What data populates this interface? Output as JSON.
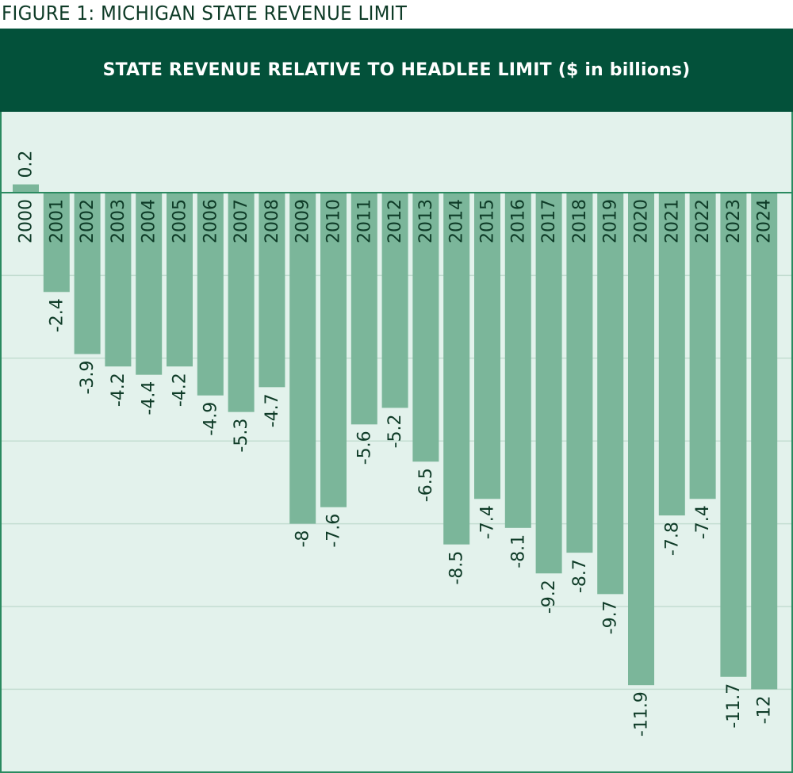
{
  "figure_title": "FIGURE 1: MICHIGAN STATE REVENUE LIMIT",
  "colors": {
    "banner": "#03513a",
    "bar": "#7bb69a",
    "plot_bg": "#e3f2ec",
    "text": "#0e3b27",
    "grid": "#c3ddd1"
  },
  "chart_data": {
    "type": "bar",
    "title": "STATE REVENUE RELATIVE TO HEADLEE LIMIT ($ in billions)",
    "xlabel": "",
    "ylabel": "",
    "categories": [
      "2000",
      "2001",
      "2002",
      "2003",
      "2004",
      "2005",
      "2006",
      "2007",
      "2008",
      "2009",
      "2010",
      "2011",
      "2012",
      "2013",
      "2014",
      "2015",
      "2016",
      "2017",
      "2018",
      "2019",
      "2020",
      "2021",
      "2022",
      "2023",
      "2024"
    ],
    "values": [
      0.2,
      -2.4,
      -3.9,
      -4.2,
      -4.4,
      -4.2,
      -4.9,
      -5.3,
      -4.7,
      -8,
      -7.6,
      -5.6,
      -5.2,
      -6.5,
      -8.5,
      -7.4,
      -8.1,
      -9.2,
      -8.7,
      -9.7,
      -11.9,
      -7.8,
      -7.4,
      -11.7,
      -12
    ],
    "data_labels": [
      "0.2",
      "-2.4",
      "-3.9",
      "-4.2",
      "-4.4",
      "-4.2",
      "-4.9",
      "-5.3",
      "-4.7",
      "-8",
      "-7.6",
      "-5.6",
      "-5.2",
      "-6.5",
      "-8.5",
      "-7.4",
      "-8.1",
      "-9.2",
      "-8.7",
      "-9.7",
      "-11.9",
      "-7.8",
      "-7.4",
      "-11.7",
      "-12"
    ],
    "ylim": [
      -14,
      2
    ],
    "grid": true,
    "gridline_step": 2,
    "legend": "none"
  }
}
